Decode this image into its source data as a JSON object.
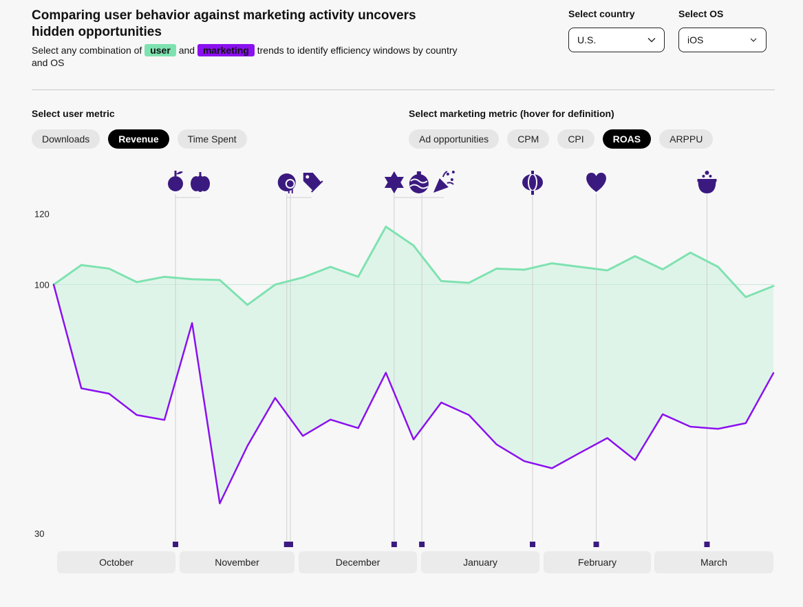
{
  "header": {
    "title": "Comparing user behavior against marketing activity uncovers hidden opportunities",
    "subtitle_before": "Select any combination of",
    "user_pill": "user",
    "and_text": "and",
    "marketing_pill": "marketing",
    "subtitle_after": "trends to identify efficiency windows by country and OS"
  },
  "filters": {
    "country_label": "Select country",
    "country_value": "U.S.",
    "os_label": "Select OS",
    "os_value": "iOS"
  },
  "user_metric": {
    "label": "Select user metric",
    "options": [
      "Downloads",
      "Revenue",
      "Time Spent"
    ],
    "selected": "Revenue"
  },
  "marketing_metric": {
    "label": "Select marketing metric (hover for definition)",
    "options": [
      "Ad opportunities",
      "CPM",
      "CPI",
      "ROAS",
      "ARPPU"
    ],
    "selected": "ROAS"
  },
  "colors": {
    "user": "#7ee2b0",
    "marketing": "#8b10ef",
    "fill": "#dff4e9",
    "event": "#3b1a80"
  },
  "chart_data": {
    "type": "line",
    "y_ticks": [
      30,
      100,
      120
    ],
    "ylim": [
      29,
      122
    ],
    "x": [
      0,
      1,
      2,
      3,
      4,
      5,
      6,
      7,
      8,
      9,
      10,
      11,
      12,
      13,
      14,
      15,
      16,
      17,
      18,
      19,
      20,
      21,
      22,
      23,
      24,
      25,
      26
    ],
    "series": [
      {
        "key": "user",
        "values": [
          100,
          105.5,
          104.5,
          100.7,
          102.2,
          101.5,
          101.3,
          94.3,
          100,
          102,
          105,
          102.2,
          116.3,
          111,
          101,
          100.5,
          104.5,
          104.2,
          106,
          105,
          104,
          108,
          104.3,
          109,
          105,
          96.5,
          99.6
        ]
      },
      {
        "key": "marketing",
        "values": [
          100,
          70.8,
          69.3,
          63.3,
          61.9,
          89.2,
          38.4,
          54.6,
          68.1,
          57.4,
          62,
          59.6,
          75.2,
          56.4,
          66.8,
          63.3,
          55,
          50.3,
          48.3,
          52.6,
          56.8,
          50.6,
          63.5,
          60,
          59.4,
          61,
          75.1
        ]
      }
    ],
    "months": [
      "October",
      "November",
      "December",
      "January",
      "February",
      "March"
    ],
    "events": [
      {
        "x": 4.4,
        "icons": [
          "apple",
          "pumpkin"
        ]
      },
      {
        "x": 8.42,
        "icons": [
          "turkey",
          "tag"
        ]
      },
      {
        "x": 8.55,
        "icons": []
      },
      {
        "x": 12.3,
        "icons": [
          "star",
          "ornament",
          "party"
        ]
      },
      {
        "x": 13.3,
        "icons": []
      },
      {
        "x": 17.3,
        "icons": [
          "lantern"
        ]
      },
      {
        "x": 19.6,
        "icons": [
          "heart"
        ]
      },
      {
        "x": 23.6,
        "icons": [
          "pot"
        ]
      }
    ]
  }
}
